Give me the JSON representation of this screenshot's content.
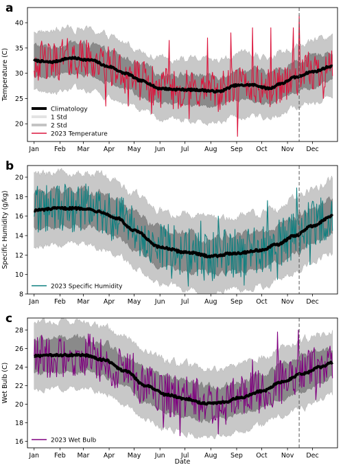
{
  "colors": {
    "climatology": "#000000",
    "band_1std": "#8a8a8a",
    "band_2std": "#c8c8c8",
    "legend_1std": "#e3e3e3",
    "legend_2std": "#c4c4c4",
    "temperature": "#dc143c",
    "humidity": "#0f8080",
    "wetbulb": "#800080",
    "vline": "#555555"
  },
  "shared_xlabel": "Date",
  "x_tick_labels": [
    "Jan",
    "Feb",
    "Mar",
    "Apr",
    "May",
    "Jun",
    "Jul",
    "Aug",
    "Sep",
    "Oct",
    "Nov",
    "Dec"
  ],
  "chart_data": [
    {
      "type": "line",
      "panel_label": "a",
      "ylabel": "Temperature (C)",
      "ylim": [
        16.5,
        43
      ],
      "yticks": [
        20,
        25,
        30,
        35,
        40
      ],
      "xlim": [
        "2022-12-24",
        "2023-12-31"
      ],
      "x_ticks": [
        "2023-01-01",
        "2023-02-01",
        "2023-03-01",
        "2023-04-01",
        "2023-05-01",
        "2023-06-01",
        "2023-07-01",
        "2023-08-01",
        "2023-09-01",
        "2023-10-01",
        "2023-11-01",
        "2023-12-01"
      ],
      "vline_date": "2023-11-15",
      "grid": false,
      "legend": {
        "placement": "lower-left",
        "entries": [
          "Climatology",
          "1 Std",
          "2 Std",
          "2023 Temperature"
        ]
      },
      "climatology_knots": {
        "dates": [
          "2023-01-01",
          "2023-01-20",
          "2023-02-15",
          "2023-03-10",
          "2023-04-01",
          "2023-04-20",
          "2023-05-10",
          "2023-06-01",
          "2023-06-20",
          "2023-07-15",
          "2023-08-10",
          "2023-09-01",
          "2023-09-20",
          "2023-10-10",
          "2023-10-25",
          "2023-11-10",
          "2023-12-01",
          "2023-12-25"
        ],
        "values": [
          32.5,
          32.2,
          33.0,
          32.6,
          31.3,
          30.0,
          28.5,
          27.0,
          26.8,
          26.7,
          26.4,
          27.6,
          27.7,
          27.0,
          28.0,
          29.2,
          30.3,
          31.4
        ]
      },
      "std": [
        3.0,
        6.0
      ],
      "observed_range": [
        "2023-01-01",
        "2023-12-25"
      ],
      "observed_sample": {
        "dates": [
          "2023-02-04",
          "2023-02-25",
          "2023-03-28",
          "2023-04-24",
          "2023-05-22",
          "2023-06-12",
          "2023-07-06",
          "2023-07-28",
          "2023-08-25",
          "2023-09-02",
          "2023-09-20",
          "2023-10-12",
          "2023-11-08",
          "2023-11-15",
          "2023-12-14"
        ],
        "values": [
          36.7,
          36.0,
          23.5,
          23.5,
          22.0,
          36.5,
          21.0,
          37.0,
          38.0,
          17.5,
          39.0,
          39.0,
          39.0,
          41.5,
          25.0
        ]
      }
    },
    {
      "type": "line",
      "panel_label": "b",
      "ylabel": "Specific Humidity (g/kg)",
      "ylim": [
        8,
        21.2
      ],
      "yticks": [
        8,
        10,
        12,
        14,
        16,
        18,
        20
      ],
      "xlim": [
        "2022-12-24",
        "2023-12-31"
      ],
      "x_ticks": [
        "2023-01-01",
        "2023-02-01",
        "2023-03-01",
        "2023-04-01",
        "2023-05-01",
        "2023-06-01",
        "2023-07-01",
        "2023-08-01",
        "2023-09-01",
        "2023-10-01",
        "2023-11-01",
        "2023-12-01"
      ],
      "vline_date": "2023-11-15",
      "grid": false,
      "legend": {
        "placement": "lower-left",
        "entries": [
          "2023 Specific Humidity"
        ]
      },
      "climatology_knots": {
        "dates": [
          "2023-01-01",
          "2023-02-01",
          "2023-03-01",
          "2023-03-20",
          "2023-04-10",
          "2023-05-01",
          "2023-06-01",
          "2023-07-01",
          "2023-08-01",
          "2023-09-01",
          "2023-10-01",
          "2023-10-20",
          "2023-11-10",
          "2023-12-01",
          "2023-12-25"
        ],
        "values": [
          16.6,
          16.8,
          16.8,
          16.5,
          15.8,
          14.5,
          12.8,
          12.3,
          11.9,
          12.2,
          12.5,
          13.1,
          14.0,
          15.0,
          16.0
        ]
      },
      "std": [
        1.9,
        3.7
      ],
      "observed_range": [
        "2023-01-01",
        "2023-12-25"
      ],
      "observed_sample": {
        "dates": [
          "2023-01-10",
          "2023-02-20",
          "2023-03-25",
          "2023-05-15",
          "2023-06-15",
          "2023-07-05",
          "2023-07-20",
          "2023-08-10",
          "2023-09-10",
          "2023-10-08",
          "2023-10-20",
          "2023-11-12",
          "2023-11-28"
        ],
        "values": [
          18.4,
          17.6,
          16.6,
          11.8,
          9.6,
          8.8,
          15.5,
          16.0,
          8.9,
          17.6,
          9.5,
          18.9,
          11.0
        ]
      }
    },
    {
      "type": "line",
      "panel_label": "c",
      "ylabel": "Wet Bulb (C)",
      "ylim": [
        15.3,
        29.3
      ],
      "yticks": [
        16,
        18,
        20,
        22,
        24,
        26,
        28
      ],
      "xlim": [
        "2022-12-24",
        "2023-12-31"
      ],
      "x_ticks": [
        "2023-01-01",
        "2023-02-01",
        "2023-03-01",
        "2023-04-01",
        "2023-05-01",
        "2023-06-01",
        "2023-07-01",
        "2023-08-01",
        "2023-09-01",
        "2023-10-01",
        "2023-11-01",
        "2023-12-01"
      ],
      "vline_date": "2023-11-15",
      "xlabel": "Date",
      "grid": false,
      "legend": {
        "placement": "lower-left",
        "entries": [
          "2023 Wet Bulb"
        ]
      },
      "climatology_knots": {
        "dates": [
          "2023-01-01",
          "2023-02-01",
          "2023-03-01",
          "2023-03-25",
          "2023-04-20",
          "2023-05-15",
          "2023-06-10",
          "2023-07-01",
          "2023-07-25",
          "2023-08-15",
          "2023-09-05",
          "2023-10-01",
          "2023-10-25",
          "2023-11-20",
          "2023-12-10",
          "2023-12-25"
        ],
        "values": [
          25.2,
          25.3,
          25.3,
          24.8,
          23.6,
          22.0,
          21.0,
          20.6,
          20.1,
          20.2,
          20.7,
          21.4,
          22.4,
          23.3,
          24.0,
          24.5
        ]
      },
      "std": [
        1.8,
        3.6
      ],
      "observed_range": [
        "2023-01-01",
        "2023-12-25"
      ],
      "observed_sample": {
        "dates": [
          "2023-01-05",
          "2023-02-01",
          "2023-03-10",
          "2023-04-30",
          "2023-06-05",
          "2023-06-25",
          "2023-07-15",
          "2023-08-10",
          "2023-08-28",
          "2023-09-20",
          "2023-10-20",
          "2023-11-08",
          "2023-11-14",
          "2023-12-05"
        ],
        "values": [
          27.2,
          26.8,
          24.0,
          25.5,
          17.5,
          16.6,
          22.8,
          16.8,
          22.8,
          24.8,
          27.8,
          21.5,
          28.0,
          20.5
        ]
      }
    }
  ]
}
